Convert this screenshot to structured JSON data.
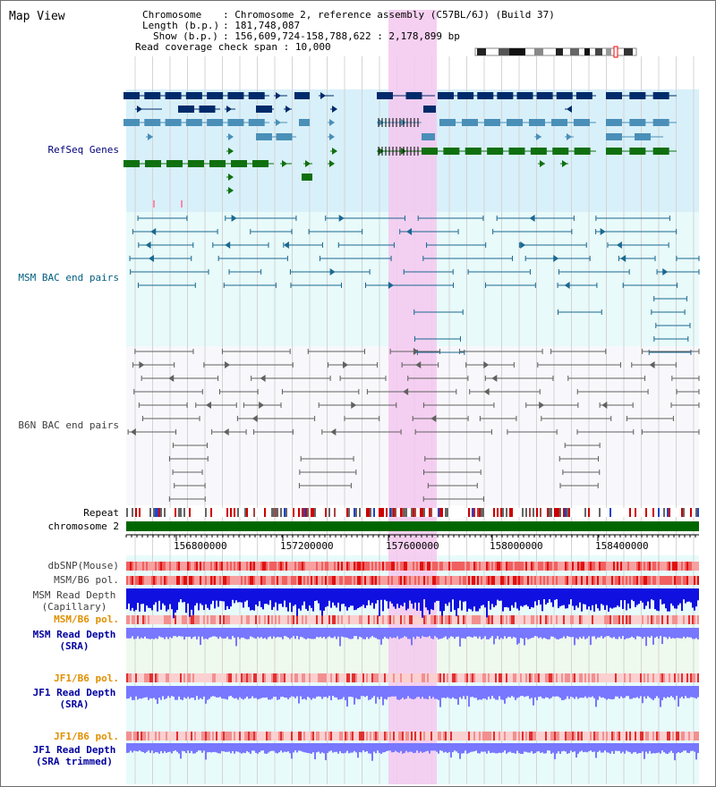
{
  "title": "Map View",
  "info": {
    "chromosome_label": "Chromosome",
    "chromosome_value": "Chromosome 2, reference assembly (C57BL/6J) (Build 37)",
    "length_label": "Length (b.p.)",
    "length_value": "181,748,087",
    "show_label": "Show (b.p.)",
    "show_value": "156,609,724-158,788,622 : 2,178,899 bp",
    "coverage_label": "Read coverage check span",
    "coverage_value": "10,000"
  },
  "tracks": {
    "refseq": "RefSeq Genes",
    "msm_bac": "MSM BAC end pairs",
    "b6n_bac": "B6N BAC end pairs",
    "repeat": "Repeat",
    "chromosome": "chromosome 2",
    "dbsnp": "dbSNP(Mouse)",
    "msm_b6_pol_1": "MSM/B6 pol.",
    "msm_depth_cap_1": "MSM Read Depth",
    "msm_depth_cap_2": "(Capillary)",
    "msm_b6_pol_2": "MSM/B6 pol.",
    "msm_depth_sra_1": "MSM Read Depth",
    "msm_depth_sra_2": "(SRA)",
    "jf1_b6_pol_1": "JF1/B6 pol.",
    "jf1_depth_sra_1": "JF1 Read Depth",
    "jf1_depth_sra_2": "(SRA)",
    "jf1_b6_pol_2": "JF1/B6 pol.",
    "jf1_depth_trim_1": "JF1 Read Depth",
    "jf1_depth_trim_2": "(SRA trimmed)"
  },
  "axis_ticks": [
    "156800000",
    "157200000",
    "157600000",
    "158000000",
    "158400000"
  ],
  "colors": {
    "refseq_bg": "#d8f0fa",
    "msm_bac_bg": "#e8fafa",
    "gene_navy": "#002b6a",
    "gene_blue": "#4a8fb8",
    "gene_green": "#107010",
    "msm_bac_line": "#1a6890",
    "b6n_bac_line": "#606060",
    "highlight": "#f5c8ee",
    "chromosome_bar": "#006600",
    "depth_blue": "#1010e0",
    "depth_light": "#7777ff",
    "label_navy": "#00007a",
    "label_teal": "#006080",
    "label_orange": "#e09000"
  }
}
